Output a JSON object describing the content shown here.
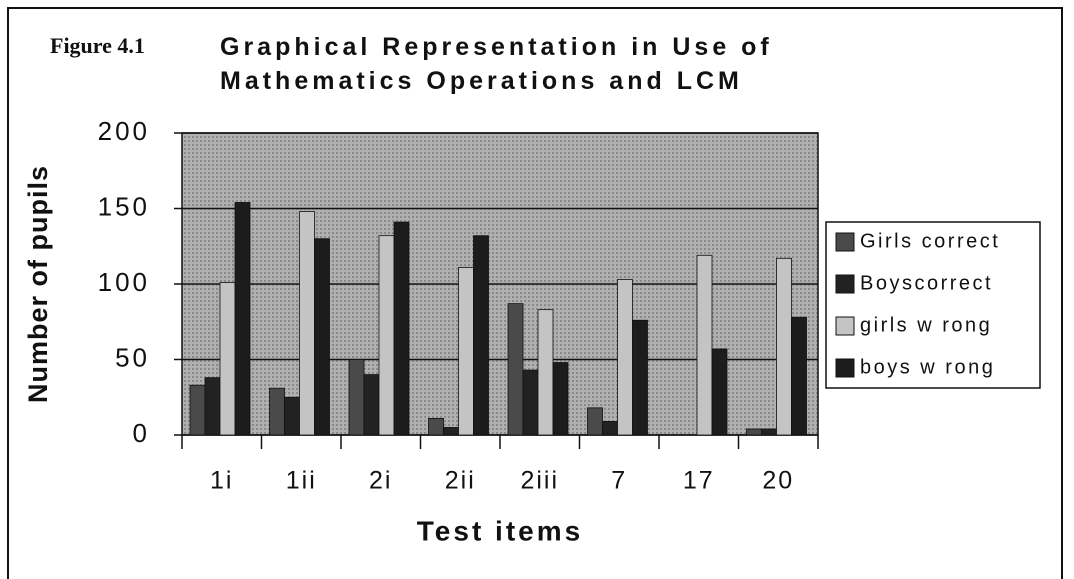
{
  "chart_data": {
    "type": "bar",
    "figure_label": "Figure 4.1",
    "title": "Graphical Representation in Use of Mathematics Operations and LCM",
    "x_label": "Test items",
    "y_label": "Number of pupils",
    "categories": [
      "1i",
      "1ii",
      "2i",
      "2ii",
      "2iii",
      "7",
      "17",
      "20"
    ],
    "series": [
      {
        "name": "Girls correct",
        "color": "#4a4a4a",
        "values": [
          33,
          31,
          50,
          11,
          87,
          18,
          0,
          4
        ]
      },
      {
        "name": "Boyscorrect",
        "color": "#222222",
        "values": [
          38,
          25,
          40,
          5,
          43,
          9,
          0,
          4
        ]
      },
      {
        "name": "girls w rong",
        "color": "#c4c4c4",
        "values": [
          101,
          148,
          132,
          111,
          83,
          103,
          119,
          117
        ]
      },
      {
        "name": "boys w rong",
        "color": "#1c1c1c",
        "values": [
          154,
          130,
          141,
          132,
          48,
          76,
          57,
          78
        ]
      }
    ],
    "ylim": [
      0,
      200
    ],
    "yticks": [
      0,
      50,
      100,
      150,
      200
    ],
    "grid": true,
    "legend": "right"
  }
}
